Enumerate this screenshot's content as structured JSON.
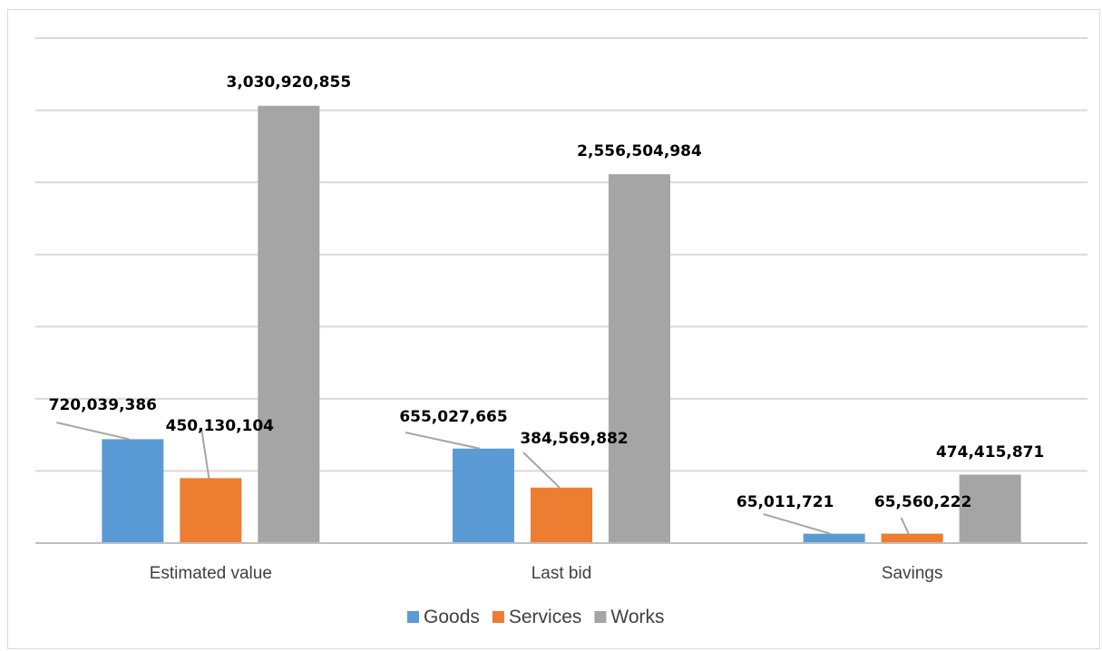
{
  "chart_data": {
    "type": "bar",
    "categories": [
      "Estimated value",
      "Last bid",
      "Savings"
    ],
    "series": [
      {
        "name": "Goods",
        "color": "#5b9bd5",
        "values": [
          720039386,
          655027665,
          65011721
        ]
      },
      {
        "name": "Services",
        "color": "#ed7d31",
        "values": [
          450130104,
          384569882,
          65560222
        ]
      },
      {
        "name": "Works",
        "color": "#a5a5a5",
        "values": [
          3030920855,
          2556504984,
          474415871
        ]
      }
    ],
    "data_labels": [
      [
        "720,039,386",
        "655,027,665",
        "65,011,721"
      ],
      [
        "450,130,104",
        "384,569,882",
        "65,560,222"
      ],
      [
        "3,030,920,855",
        "2,556,504,984",
        "474,415,871"
      ]
    ],
    "ylim": [
      0,
      3500000000
    ],
    "y_gridline_step": 500000000,
    "y_tick_labels_shown": false,
    "grid": true,
    "legend_position": "bottom",
    "gridline_color": "#d9d9d9",
    "axis_color": "#bfbfbf",
    "leader_line_color": "#a6a6a6"
  }
}
